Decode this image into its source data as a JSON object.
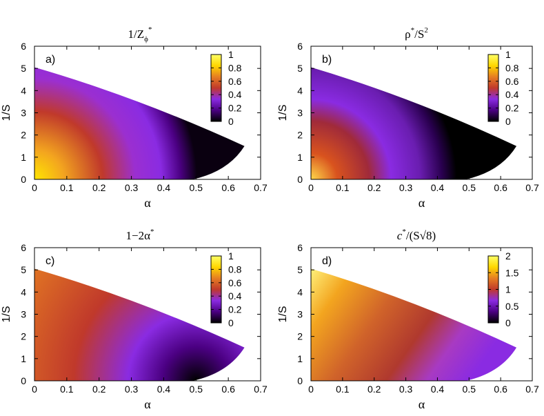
{
  "figure": {
    "colormap": [
      "#000000",
      "#4b0082",
      "#8a2be2",
      "#c0392b",
      "#e67e22",
      "#ffd700",
      "#ffff66"
    ]
  },
  "chart_data": [
    {
      "type": "heatmap",
      "panel_label": "a)",
      "title": "1/Z",
      "title_sub": "ϕ",
      "title_sup": "*",
      "xlabel": "α",
      "ylabel": "1/S",
      "xlim": [
        0,
        0.7
      ],
      "ylim": [
        0,
        6
      ],
      "xticks": [
        "0",
        "0.1",
        "0.2",
        "0.3",
        "0.4",
        "0.5",
        "0.6",
        "0.7"
      ],
      "yticks": [
        "0",
        "1",
        "2",
        "3",
        "4",
        "5",
        "6"
      ],
      "colorbar": {
        "min": 0,
        "max": 1,
        "ticks": [
          "0",
          "0.2",
          "0.4",
          "0.6",
          "0.8",
          "1"
        ]
      },
      "region": {
        "top_at_alpha0": 5.05,
        "tip": [
          0.65,
          1.5
        ],
        "bottom_alpha_at_zero": 0.49
      }
    },
    {
      "type": "heatmap",
      "panel_label": "b)",
      "title": "ρ",
      "title_sup": "*",
      "title_rest": "/S",
      "title_sup2": "2",
      "xlabel": "α",
      "ylabel": "1/S",
      "xlim": [
        0,
        0.7
      ],
      "ylim": [
        0,
        6
      ],
      "xticks": [
        "0",
        "0.1",
        "0.2",
        "0.3",
        "0.4",
        "0.5",
        "0.6",
        "0.7"
      ],
      "yticks": [
        "0",
        "1",
        "2",
        "3",
        "4",
        "5",
        "6"
      ],
      "colorbar": {
        "min": 0,
        "max": 1,
        "ticks": [
          "0",
          "0.2",
          "0.4",
          "0.6",
          "0.8",
          "1"
        ]
      },
      "region": {
        "top_at_alpha0": 5.05,
        "tip": [
          0.65,
          1.5
        ],
        "bottom_alpha_at_zero": 0.49
      }
    },
    {
      "type": "heatmap",
      "panel_label": "c)",
      "title": "1−2α",
      "title_sup": "*",
      "xlabel": "α",
      "ylabel": "1/S",
      "xlim": [
        0,
        0.7
      ],
      "ylim": [
        0,
        6
      ],
      "xticks": [
        "0",
        "0.1",
        "0.2",
        "0.3",
        "0.4",
        "0.5",
        "0.6",
        "0.7"
      ],
      "yticks": [
        "0",
        "1",
        "2",
        "3",
        "4",
        "5",
        "6"
      ],
      "colorbar": {
        "min": 0,
        "max": 1,
        "ticks": [
          "0",
          "0.2",
          "0.4",
          "0.6",
          "0.8",
          "1"
        ]
      },
      "region": {
        "top_at_alpha0": 5.05,
        "tip": [
          0.65,
          1.5
        ],
        "bottom_alpha_at_zero": 0.49
      }
    },
    {
      "type": "heatmap",
      "panel_label": "d)",
      "title": "c",
      "title_sup": "*",
      "title_rest": "/(S√8)",
      "xlabel": "α",
      "ylabel": "1/S",
      "xlim": [
        0,
        0.7
      ],
      "ylim": [
        0,
        6
      ],
      "xticks": [
        "0",
        "0.1",
        "0.2",
        "0.3",
        "0.4",
        "0.5",
        "0.6",
        "0.7"
      ],
      "yticks": [
        "0",
        "1",
        "2",
        "3",
        "4",
        "5",
        "6"
      ],
      "colorbar": {
        "min": 0,
        "max": 2,
        "ticks": [
          "0",
          "0.5",
          "1",
          "1.5",
          "2"
        ]
      },
      "region": {
        "top_at_alpha0": 5.05,
        "tip": [
          0.65,
          1.5
        ],
        "bottom_alpha_at_zero": 0.49
      }
    }
  ]
}
